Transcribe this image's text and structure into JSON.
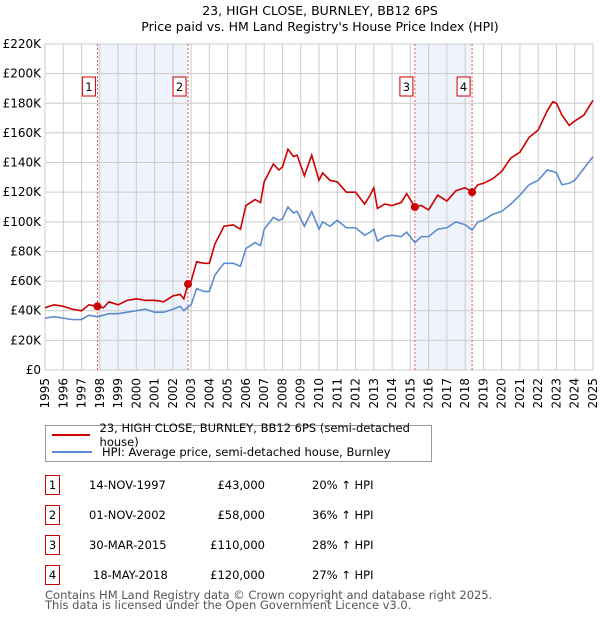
{
  "chart_data": {
    "type": "line",
    "title": "23, HIGH CLOSE, BURNLEY, BB12 6PS",
    "subtitle": "Price paid vs. HM Land Registry's House Price Index (HPI)",
    "xlim": [
      1995,
      2025
    ],
    "ylim": [
      0,
      220000
    ],
    "x_ticks": [
      "1995",
      "1996",
      "1997",
      "1998",
      "1999",
      "2000",
      "2001",
      "2002",
      "2003",
      "2004",
      "2005",
      "2006",
      "2007",
      "2008",
      "2009",
      "2010",
      "2011",
      "2012",
      "2013",
      "2014",
      "2015",
      "2016",
      "2017",
      "2018",
      "2019",
      "2020",
      "2021",
      "2022",
      "2023",
      "2024",
      "2025"
    ],
    "y_ticks": [
      {
        "v": 0,
        "label": "£0"
      },
      {
        "v": 20000,
        "label": "£20K"
      },
      {
        "v": 40000,
        "label": "£40K"
      },
      {
        "v": 60000,
        "label": "£60K"
      },
      {
        "v": 80000,
        "label": "£80K"
      },
      {
        "v": 100000,
        "label": "£100K"
      },
      {
        "v": 120000,
        "label": "£120K"
      },
      {
        "v": 140000,
        "label": "£140K"
      },
      {
        "v": 160000,
        "label": "£160K"
      },
      {
        "v": 180000,
        "label": "£180K"
      },
      {
        "v": 200000,
        "label": "£200K"
      },
      {
        "v": 220000,
        "label": "£220K"
      }
    ],
    "grid": true,
    "series": [
      {
        "name": "23, HIGH CLOSE, BURNLEY, BB12 6PS (semi-detached house)",
        "color": "#cc0000",
        "x": [
          1995,
          1995.5,
          1996,
          1996.5,
          1997,
          1997.4,
          1997.87,
          1998.2,
          1998.5,
          1999,
          1999.5,
          2000,
          2000.5,
          2001,
          2001.5,
          2002,
          2002.4,
          2002.6,
          2002.83,
          2003,
          2003.3,
          2003.7,
          2004,
          2004.3,
          2004.8,
          2005.3,
          2005.7,
          2006,
          2006.5,
          2006.8,
          2007,
          2007.5,
          2007.8,
          2008,
          2008.3,
          2008.6,
          2008.8,
          2009.2,
          2009.6,
          2010,
          2010.2,
          2010.6,
          2011,
          2011.5,
          2012,
          2012.5,
          2012.8,
          2013,
          2013.2,
          2013.6,
          2014,
          2014.5,
          2014.8,
          2015.25,
          2015.6,
          2016,
          2016.5,
          2017,
          2017.5,
          2018,
          2018.38,
          2018.7,
          2019,
          2019.5,
          2020,
          2020.5,
          2021,
          2021.5,
          2022,
          2022.5,
          2022.8,
          2023,
          2023.3,
          2023.7,
          2024,
          2024.5,
          2025
        ],
        "y": [
          42000,
          44000,
          43000,
          41000,
          40000,
          44000,
          43000,
          42000,
          46000,
          44000,
          47000,
          48000,
          47000,
          47000,
          46000,
          50000,
          51000,
          48000,
          58000,
          60000,
          73000,
          72000,
          72000,
          85000,
          97000,
          98000,
          95000,
          111000,
          115000,
          113000,
          127000,
          139000,
          135000,
          137000,
          149000,
          144000,
          145000,
          131000,
          145000,
          128000,
          133000,
          128000,
          127000,
          120000,
          120000,
          112000,
          118000,
          123000,
          109000,
          112000,
          111000,
          113000,
          119000,
          110000,
          111000,
          108000,
          118000,
          114000,
          121000,
          123000,
          120000,
          125000,
          126000,
          129000,
          134000,
          143000,
          147000,
          157000,
          162000,
          175000,
          181000,
          180000,
          172000,
          165000,
          168000,
          172000,
          182000
        ]
      },
      {
        "name": "HPI: Average price, semi-detached house, Burnley",
        "color": "#5b8bd0",
        "x": [
          1995,
          1995.5,
          1996,
          1996.5,
          1997,
          1997.4,
          1997.87,
          1998.2,
          1998.5,
          1999,
          1999.5,
          2000,
          2000.5,
          2001,
          2001.5,
          2002,
          2002.4,
          2002.6,
          2002.83,
          2003,
          2003.3,
          2003.7,
          2004,
          2004.3,
          2004.8,
          2005.3,
          2005.7,
          2006,
          2006.5,
          2006.8,
          2007,
          2007.5,
          2007.8,
          2008,
          2008.3,
          2008.6,
          2008.8,
          2009.2,
          2009.6,
          2010,
          2010.2,
          2010.6,
          2011,
          2011.5,
          2012,
          2012.5,
          2012.8,
          2013,
          2013.2,
          2013.6,
          2014,
          2014.5,
          2014.8,
          2015.25,
          2015.6,
          2016,
          2016.5,
          2017,
          2017.5,
          2018,
          2018.38,
          2018.7,
          2019,
          2019.5,
          2020,
          2020.5,
          2021,
          2021.5,
          2022,
          2022.5,
          2022.8,
          2023,
          2023.3,
          2023.7,
          2024,
          2024.5,
          2025
        ],
        "y": [
          35000,
          36000,
          35000,
          34000,
          34000,
          37000,
          36000,
          37000,
          38000,
          38000,
          39000,
          40000,
          41000,
          39000,
          39000,
          41000,
          43000,
          40000,
          42700,
          44000,
          55000,
          53000,
          53000,
          64000,
          72000,
          72000,
          70000,
          82000,
          86000,
          84000,
          95000,
          103000,
          101000,
          102000,
          110000,
          106000,
          107000,
          97000,
          107000,
          95000,
          100000,
          97000,
          101000,
          96000,
          96000,
          91000,
          93000,
          95000,
          87000,
          90000,
          91000,
          90000,
          93000,
          86000,
          90000,
          90000,
          95000,
          96000,
          100000,
          98000,
          94500,
          100000,
          101000,
          105000,
          107000,
          112000,
          118000,
          125000,
          128000,
          135000,
          134000,
          133000,
          125000,
          126000,
          128000,
          136000,
          144000
        ]
      }
    ],
    "sales": [
      {
        "n": "1",
        "x": 1997.87,
        "price": 43000,
        "date": "14-NOV-1997",
        "price_label": "£43,000",
        "hpi": "20% ↑ HPI"
      },
      {
        "n": "2",
        "x": 2002.83,
        "price": 58000,
        "date": "01-NOV-2002",
        "price_label": "£58,000",
        "hpi": "36% ↑ HPI"
      },
      {
        "n": "3",
        "x": 2015.25,
        "price": 110000,
        "date": "30-MAR-2015",
        "price_label": "£110,000",
        "hpi": "28% ↑ HPI"
      },
      {
        "n": "4",
        "x": 2018.38,
        "price": 120000,
        "date": "18-MAY-2018",
        "price_label": "£120,000",
        "hpi": "27% ↑ HPI"
      }
    ],
    "shaded_ranges": [
      [
        1997.87,
        2002.83
      ],
      [
        2015.25,
        2018.38
      ]
    ],
    "legend_placement": "below"
  },
  "footer": {
    "line1": "Contains HM Land Registry data © Crown copyright and database right 2025.",
    "line2": "This data is licensed under the Open Government Licence v3.0."
  }
}
